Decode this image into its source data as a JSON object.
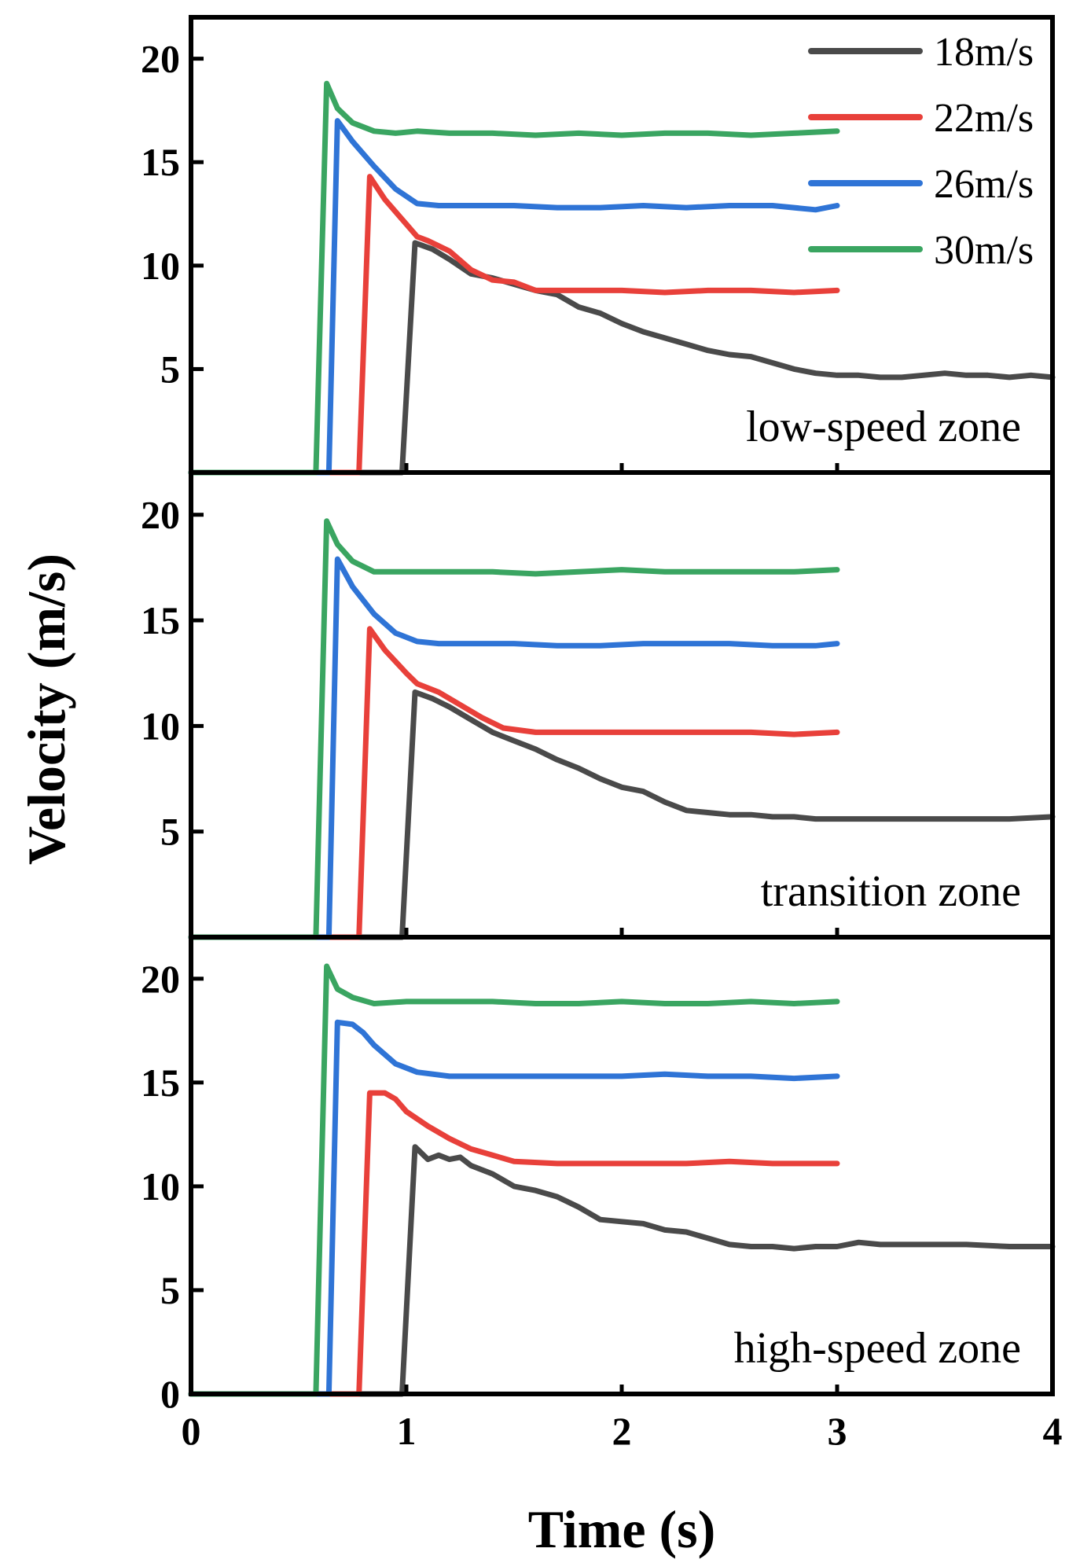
{
  "chart_data": [
    {
      "type": "line",
      "panel": "top",
      "annotation": "low-speed zone",
      "xlim": [
        0,
        4
      ],
      "ylim": [
        0,
        22
      ],
      "yticks": [
        5,
        10,
        15,
        20
      ],
      "series": [
        {
          "name": "18m/s",
          "color": "#4a4a4a",
          "x": [
            0,
            0.98,
            1.04,
            1.12,
            1.2,
            1.3,
            1.4,
            1.5,
            1.6,
            1.7,
            1.8,
            1.9,
            2.0,
            2.1,
            2.2,
            2.3,
            2.4,
            2.5,
            2.6,
            2.7,
            2.8,
            2.9,
            3.0,
            3.1,
            3.2,
            3.3,
            3.4,
            3.5,
            3.6,
            3.7,
            3.8,
            3.9,
            4.0
          ],
          "y": [
            0,
            0,
            11.1,
            10.8,
            10.3,
            9.6,
            9.4,
            9.1,
            8.8,
            8.6,
            8.0,
            7.7,
            7.2,
            6.8,
            6.5,
            6.2,
            5.9,
            5.7,
            5.6,
            5.3,
            5.0,
            4.8,
            4.7,
            4.7,
            4.6,
            4.6,
            4.7,
            4.8,
            4.7,
            4.7,
            4.6,
            4.7,
            4.6
          ]
        },
        {
          "name": "22m/s",
          "color": "#e8403a",
          "x": [
            0,
            0.78,
            0.83,
            0.9,
            1.0,
            1.05,
            1.1,
            1.2,
            1.3,
            1.4,
            1.5,
            1.6,
            1.8,
            2.0,
            2.2,
            2.4,
            2.6,
            2.8,
            3.0
          ],
          "y": [
            0,
            0,
            14.3,
            13.2,
            12.0,
            11.4,
            11.2,
            10.7,
            9.8,
            9.3,
            9.2,
            8.8,
            8.8,
            8.8,
            8.7,
            8.8,
            8.8,
            8.7,
            8.8
          ]
        },
        {
          "name": "26m/s",
          "color": "#2f74d6",
          "x": [
            0,
            0.64,
            0.68,
            0.75,
            0.85,
            0.95,
            1.05,
            1.15,
            1.3,
            1.5,
            1.7,
            1.9,
            2.1,
            2.3,
            2.5,
            2.7,
            2.9,
            3.0
          ],
          "y": [
            0,
            0,
            17.0,
            16.0,
            14.8,
            13.7,
            13.0,
            12.9,
            12.9,
            12.9,
            12.8,
            12.8,
            12.9,
            12.8,
            12.9,
            12.9,
            12.7,
            12.9
          ]
        },
        {
          "name": "30m/s",
          "color": "#3aa561",
          "x": [
            0,
            0.58,
            0.63,
            0.68,
            0.75,
            0.85,
            0.95,
            1.05,
            1.2,
            1.4,
            1.6,
            1.8,
            2.0,
            2.2,
            2.4,
            2.6,
            2.8,
            3.0
          ],
          "y": [
            0,
            0,
            18.8,
            17.6,
            16.9,
            16.5,
            16.4,
            16.5,
            16.4,
            16.4,
            16.3,
            16.4,
            16.3,
            16.4,
            16.4,
            16.3,
            16.4,
            16.5
          ]
        }
      ]
    },
    {
      "type": "line",
      "panel": "middle",
      "annotation": "transition zone",
      "xlim": [
        0,
        4
      ],
      "ylim": [
        0,
        22
      ],
      "yticks": [
        5,
        10,
        15,
        20
      ],
      "series": [
        {
          "name": "18m/s",
          "color": "#4a4a4a",
          "x": [
            0,
            0.98,
            1.04,
            1.12,
            1.2,
            1.3,
            1.4,
            1.5,
            1.6,
            1.7,
            1.8,
            1.9,
            2.0,
            2.1,
            2.2,
            2.3,
            2.4,
            2.5,
            2.6,
            2.7,
            2.8,
            2.9,
            3.0,
            3.2,
            3.4,
            3.6,
            3.8,
            4.0
          ],
          "y": [
            0,
            0,
            11.6,
            11.3,
            10.9,
            10.3,
            9.7,
            9.3,
            8.9,
            8.4,
            8.0,
            7.5,
            7.1,
            6.9,
            6.4,
            6.0,
            5.9,
            5.8,
            5.8,
            5.7,
            5.7,
            5.6,
            5.6,
            5.6,
            5.6,
            5.6,
            5.6,
            5.7
          ]
        },
        {
          "name": "22m/s",
          "color": "#e8403a",
          "x": [
            0,
            0.78,
            0.83,
            0.9,
            1.0,
            1.05,
            1.15,
            1.25,
            1.35,
            1.45,
            1.6,
            1.8,
            2.0,
            2.2,
            2.4,
            2.6,
            2.8,
            3.0
          ],
          "y": [
            0,
            0,
            14.6,
            13.6,
            12.5,
            12.0,
            11.6,
            11.0,
            10.4,
            9.9,
            9.7,
            9.7,
            9.7,
            9.7,
            9.7,
            9.7,
            9.6,
            9.7
          ]
        },
        {
          "name": "26m/s",
          "color": "#2f74d6",
          "x": [
            0,
            0.64,
            0.68,
            0.75,
            0.85,
            0.95,
            1.05,
            1.15,
            1.3,
            1.5,
            1.7,
            1.9,
            2.1,
            2.3,
            2.5,
            2.7,
            2.9,
            3.0
          ],
          "y": [
            0,
            0,
            17.9,
            16.6,
            15.3,
            14.4,
            14.0,
            13.9,
            13.9,
            13.9,
            13.8,
            13.8,
            13.9,
            13.9,
            13.9,
            13.8,
            13.8,
            13.9
          ]
        },
        {
          "name": "30m/s",
          "color": "#3aa561",
          "x": [
            0,
            0.58,
            0.63,
            0.68,
            0.75,
            0.85,
            1.0,
            1.2,
            1.4,
            1.6,
            1.8,
            2.0,
            2.2,
            2.4,
            2.6,
            2.8,
            3.0
          ],
          "y": [
            0,
            0,
            19.7,
            18.6,
            17.8,
            17.3,
            17.3,
            17.3,
            17.3,
            17.2,
            17.3,
            17.4,
            17.3,
            17.3,
            17.3,
            17.3,
            17.4
          ]
        }
      ]
    },
    {
      "type": "line",
      "panel": "bottom",
      "annotation": "high-speed zone",
      "xlim": [
        0,
        4
      ],
      "ylim": [
        0,
        22
      ],
      "xticks": [
        0,
        1,
        2,
        3,
        4
      ],
      "yticks": [
        0,
        5,
        10,
        15,
        20
      ],
      "xlabel": "Time (s)",
      "series": [
        {
          "name": "18m/s",
          "color": "#4a4a4a",
          "x": [
            0,
            0.98,
            1.04,
            1.1,
            1.15,
            1.2,
            1.25,
            1.3,
            1.4,
            1.5,
            1.6,
            1.7,
            1.8,
            1.9,
            2.0,
            2.1,
            2.2,
            2.3,
            2.4,
            2.5,
            2.6,
            2.7,
            2.8,
            2.9,
            3.0,
            3.1,
            3.2,
            3.4,
            3.6,
            3.8,
            4.0
          ],
          "y": [
            0,
            0,
            11.9,
            11.3,
            11.5,
            11.3,
            11.4,
            11.0,
            10.6,
            10.0,
            9.8,
            9.5,
            9.0,
            8.4,
            8.3,
            8.2,
            7.9,
            7.8,
            7.5,
            7.2,
            7.1,
            7.1,
            7.0,
            7.1,
            7.1,
            7.3,
            7.2,
            7.2,
            7.2,
            7.1,
            7.1
          ]
        },
        {
          "name": "22m/s",
          "color": "#e8403a",
          "x": [
            0,
            0.78,
            0.83,
            0.9,
            0.95,
            1.0,
            1.1,
            1.2,
            1.3,
            1.4,
            1.5,
            1.7,
            1.9,
            2.1,
            2.3,
            2.5,
            2.7,
            2.9,
            3.0
          ],
          "y": [
            0,
            0,
            14.5,
            14.5,
            14.2,
            13.6,
            12.9,
            12.3,
            11.8,
            11.5,
            11.2,
            11.1,
            11.1,
            11.1,
            11.1,
            11.2,
            11.1,
            11.1,
            11.1
          ]
        },
        {
          "name": "26m/s",
          "color": "#2f74d6",
          "x": [
            0,
            0.64,
            0.68,
            0.75,
            0.8,
            0.85,
            0.95,
            1.05,
            1.2,
            1.4,
            1.6,
            1.8,
            2.0,
            2.2,
            2.4,
            2.6,
            2.8,
            3.0
          ],
          "y": [
            0,
            0,
            17.9,
            17.8,
            17.4,
            16.8,
            15.9,
            15.5,
            15.3,
            15.3,
            15.3,
            15.3,
            15.3,
            15.4,
            15.3,
            15.3,
            15.2,
            15.3
          ]
        },
        {
          "name": "30m/s",
          "color": "#3aa561",
          "x": [
            0,
            0.58,
            0.63,
            0.68,
            0.75,
            0.85,
            1.0,
            1.2,
            1.4,
            1.6,
            1.8,
            2.0,
            2.2,
            2.4,
            2.6,
            2.8,
            3.0
          ],
          "y": [
            0,
            0,
            20.6,
            19.5,
            19.1,
            18.8,
            18.9,
            18.9,
            18.9,
            18.8,
            18.8,
            18.9,
            18.8,
            18.8,
            18.9,
            18.8,
            18.9
          ]
        }
      ]
    }
  ],
  "legend": [
    "18m/s",
    "22m/s",
    "26m/s",
    "30m/s"
  ],
  "ylabel": "Velocity (m/s)"
}
